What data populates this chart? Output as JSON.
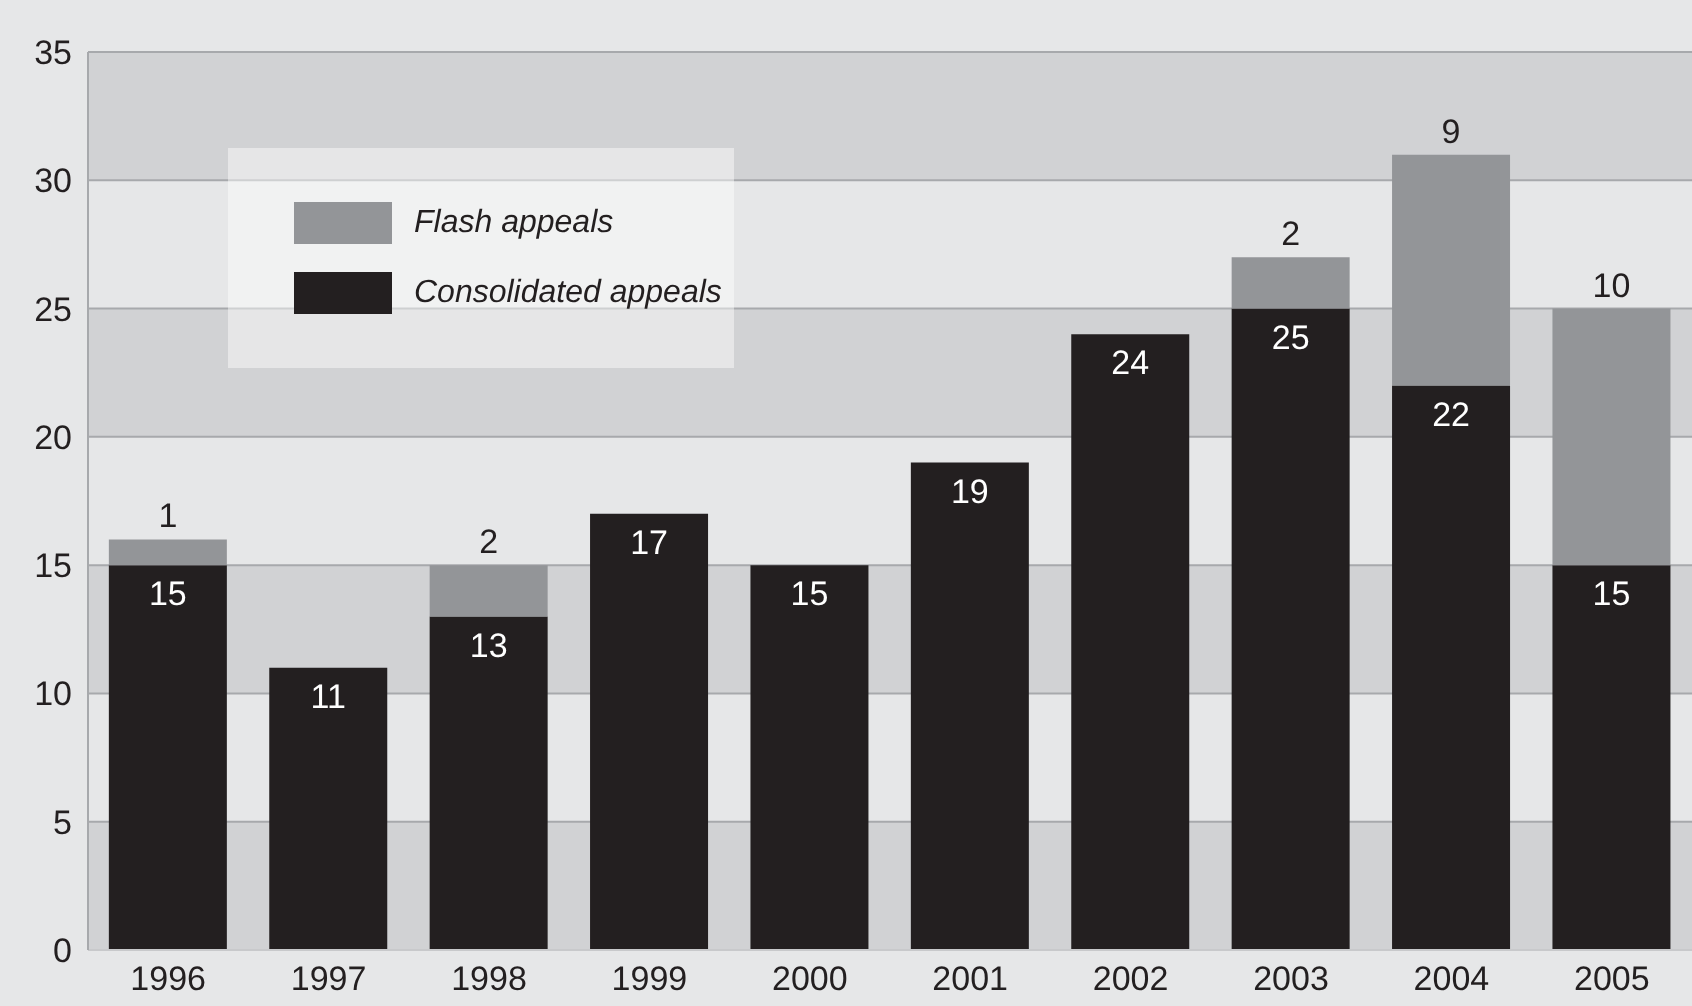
{
  "chart_data": {
    "type": "bar",
    "stacked": true,
    "categories": [
      "1996",
      "1997",
      "1998",
      "1999",
      "2000",
      "2001",
      "2002",
      "2003",
      "2004",
      "2005"
    ],
    "series": [
      {
        "name": "Consolidated appeals",
        "color": "#231f20",
        "values": [
          15,
          11,
          13,
          17,
          15,
          19,
          24,
          25,
          22,
          15
        ]
      },
      {
        "name": "Flash appeals",
        "color": "#939598",
        "values": [
          1,
          null,
          2,
          null,
          null,
          null,
          null,
          2,
          9,
          10
        ]
      }
    ],
    "ylim": [
      0,
      35
    ],
    "yticks": [
      0,
      5,
      10,
      15,
      20,
      25,
      30,
      35
    ],
    "grid": "y",
    "legend": "top left",
    "data_labels": true
  }
}
